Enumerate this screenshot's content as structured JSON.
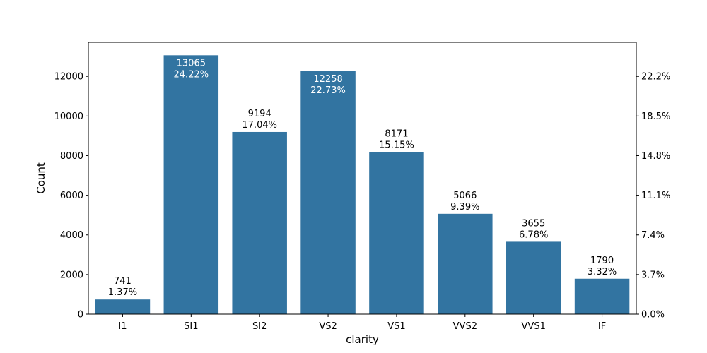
{
  "chart_data": {
    "type": "bar",
    "xlabel": "clarity",
    "ylabel": "Count",
    "categories": [
      "I1",
      "SI1",
      "SI2",
      "VS2",
      "VS1",
      "VVS2",
      "VVS1",
      "IF"
    ],
    "values": [
      741,
      13065,
      9194,
      12258,
      8171,
      5066,
      3655,
      1790
    ],
    "percent_labels": [
      "1.37%",
      "24.22%",
      "17.04%",
      "22.73%",
      "15.15%",
      "9.39%",
      "6.78%",
      "3.32%"
    ],
    "label_inside": [
      false,
      true,
      false,
      true,
      false,
      false,
      false,
      false
    ],
    "ylim": [
      0,
      13718
    ],
    "yticks": [
      0,
      2000,
      4000,
      6000,
      8000,
      10000,
      12000
    ],
    "right_axis": {
      "tick_labels": [
        "0.0%",
        "3.7%",
        "7.4%",
        "11.1%",
        "14.8%",
        "18.5%",
        "22.2%"
      ],
      "tick_values": [
        0,
        2000,
        4000,
        6000,
        8000,
        10000,
        12000
      ]
    },
    "grid": false,
    "bar_color": "#3274a1",
    "inside_label_color": "#ffffff",
    "outside_label_color": "#000000"
  }
}
